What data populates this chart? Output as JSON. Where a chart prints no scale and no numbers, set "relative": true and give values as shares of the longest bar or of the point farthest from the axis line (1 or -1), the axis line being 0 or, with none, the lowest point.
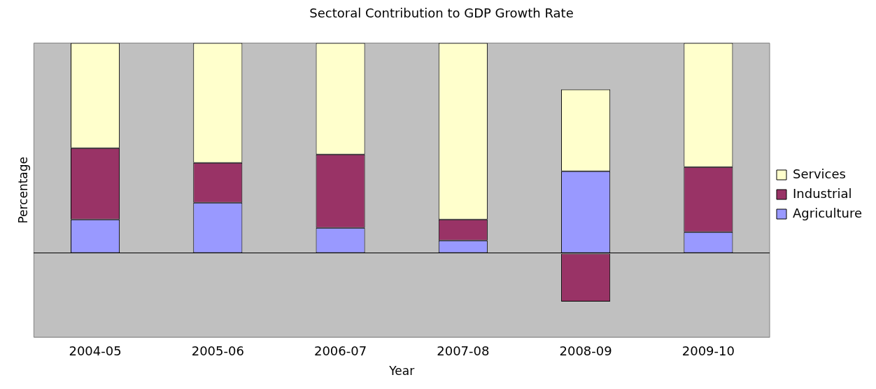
{
  "chart_data": {
    "type": "bar",
    "title": "Sectoral Contribution to GDP Growth Rate",
    "xlabel": "Year",
    "ylabel": "Percentage",
    "stacked": true,
    "relative": true,
    "legend": "right",
    "categories": [
      "2004-05",
      "2005-06",
      "2006-07",
      "2007-08",
      "2008-09",
      "2009-10"
    ],
    "series": [
      {
        "name": "Agriculture",
        "color": "#9999ff",
        "values": [
          0.16,
          0.24,
          0.12,
          0.06,
          0.39,
          0.1
        ]
      },
      {
        "name": "Industrial",
        "color": "#993366",
        "values": [
          0.34,
          0.19,
          0.35,
          0.1,
          -0.23,
          0.31
        ]
      },
      {
        "name": "Services",
        "color": "#ffffcc",
        "values": [
          0.5,
          0.57,
          0.53,
          0.84,
          0.39,
          0.59
        ]
      }
    ]
  }
}
